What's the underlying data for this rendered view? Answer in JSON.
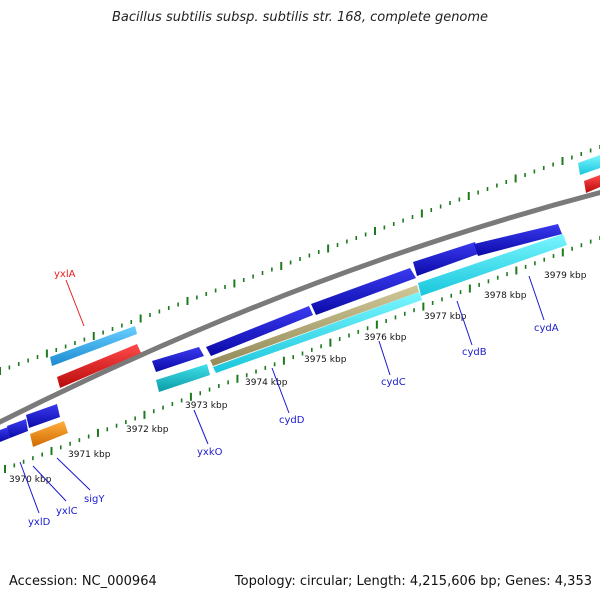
{
  "title": "Bacillus subtilis subsp. subtilis str. 168, complete genome",
  "footer": {
    "accession": "Accession: NC_000964",
    "summary": "Topology: circular; Length: 4,215,606 bp; Genes: 4,353"
  },
  "ticks": [
    {
      "label": "3970 kbp"
    },
    {
      "label": "3971 kbp"
    },
    {
      "label": "3972 kbp"
    },
    {
      "label": "3973 kbp"
    },
    {
      "label": "3974 kbp"
    },
    {
      "label": "3975 kbp"
    },
    {
      "label": "3976 kbp"
    },
    {
      "label": "3977 kbp"
    },
    {
      "label": "3978 kbp"
    },
    {
      "label": "3979 kbp"
    }
  ],
  "genes": [
    {
      "name": "yxlA",
      "color": "#e82020"
    },
    {
      "name": "yxlD",
      "color": "#1a1ad0"
    },
    {
      "name": "yxlC",
      "color": "#1a1ad0"
    },
    {
      "name": "sigY",
      "color": "#1a1ad0"
    },
    {
      "name": "yxkO",
      "color": "#1a1ad0"
    },
    {
      "name": "cydD",
      "color": "#1a1ad0"
    },
    {
      "name": "cydC",
      "color": "#1a1ad0"
    },
    {
      "name": "cydB",
      "color": "#1a1ad0"
    },
    {
      "name": "cydA",
      "color": "#1a1ad0"
    }
  ],
  "colors": {
    "backbone": "#7a7a7a",
    "tick": "#1e7a1e",
    "cds_forward": "#1414d2",
    "feature_cyan": "#19b9c8",
    "feature_light": "#2ee0f0",
    "feature_red": "#e01818",
    "feature_orange": "#f08a10",
    "feature_sky": "#3ab0ea",
    "feature_khaki": "#b0a878"
  }
}
